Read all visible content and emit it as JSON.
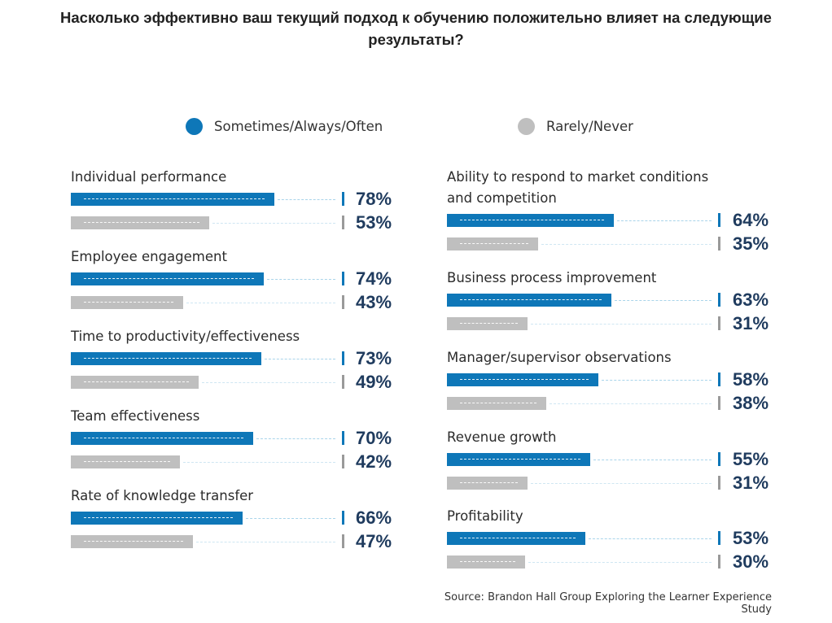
{
  "title": "Насколько эффективно ваш текущий подход к обучению положительно влияет на следующие результаты?",
  "source": "Source: Brandon Hall Group Exploring the Learner Experience Study",
  "colors": {
    "series_1": "#0e77b8",
    "series_2": "#bfbfbf",
    "trail": "#a9d4ea",
    "value_text": "#1f3b5e"
  },
  "chart_data": {
    "type": "bar",
    "orientation": "horizontal",
    "title": "Насколько эффективно ваш текущий подход к обучению положительно влияет на следующие результаты?",
    "legend": [
      {
        "name": "Sometimes/Always/Often",
        "color": "#0e77b8"
      },
      {
        "name": "Rarely/Never",
        "color": "#bfbfbf"
      }
    ],
    "legend_position": "top",
    "value_unit": "%",
    "panels": [
      {
        "categories": [
          "Individual performance",
          "Employee engagement",
          "Time to productivity/effectiveness",
          "Team effectiveness",
          "Rate of knowledge transfer"
        ],
        "series": [
          {
            "name": "Sometimes/Always/Often",
            "values": [
              78,
              74,
              73,
              70,
              66
            ],
            "labels": [
              "78%",
              "74%",
              "73%",
              "70%",
              "66%"
            ]
          },
          {
            "name": "Rarely/Never",
            "values": [
              53,
              43,
              49,
              42,
              47
            ],
            "labels": [
              "53%",
              "43%",
              "49%",
              "42%",
              "47%"
            ]
          }
        ]
      },
      {
        "categories": [
          "Ability to respond to market conditions and competition",
          "Business process improvement",
          "Manager/supervisor observations",
          "Revenue growth",
          "Profitability"
        ],
        "series": [
          {
            "name": "Sometimes/Always/Often",
            "values": [
              64,
              63,
              58,
              55,
              53
            ],
            "labels": [
              "64%",
              "63%",
              "58%",
              "55%",
              "53%"
            ]
          },
          {
            "name": "Rarely/Never",
            "values": [
              35,
              31,
              38,
              31,
              30
            ],
            "labels": [
              "35%",
              "31%",
              "38%",
              "31%",
              "30%"
            ]
          }
        ]
      }
    ]
  }
}
